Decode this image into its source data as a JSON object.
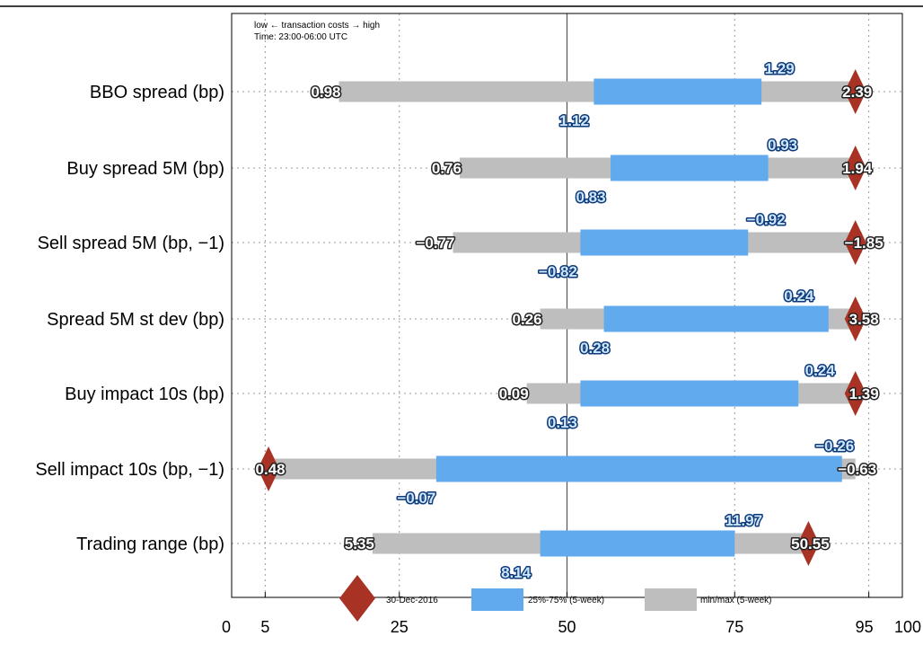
{
  "chart_data": {
    "type": "range",
    "annotation_line1": "low ← transaction costs → high",
    "annotation_line2": "Time: 23:00-06:00 UTC",
    "xlim": [
      0,
      100
    ],
    "xticks": [
      "0",
      "5",
      "25",
      "50",
      "75",
      "95",
      "100"
    ],
    "xtick_values": [
      0,
      5,
      25,
      50,
      75,
      95,
      100
    ],
    "reference_line_x": 50,
    "legend": {
      "marker_label": "30-Dec-2016",
      "iqr_label": "25%-75%  (5-week)",
      "minmax_label": "min/max  (5-week)"
    },
    "colors": {
      "minmax": "#bebebe",
      "iqr": "#62aaee",
      "marker": "#a83224",
      "value_outline_gray": "#222222",
      "value_outline_blue": "#0d3a78"
    },
    "rows": [
      {
        "label": "BBO spread (bp)",
        "min_pct": 16,
        "max_pct": 93,
        "q25_pct": 54,
        "q75_pct": 79,
        "marker_pct": 93,
        "min_label": "0.98",
        "max_label": "2.39",
        "q25_label": "1.12",
        "q75_label": "1.29"
      },
      {
        "label": "Buy spread 5M (bp)",
        "min_pct": 34,
        "max_pct": 93,
        "q25_pct": 56.5,
        "q75_pct": 80,
        "marker_pct": 93,
        "min_label": "0.76",
        "max_label": "1.94",
        "q25_label": "0.83",
        "q75_label": "0.93"
      },
      {
        "label": "Sell spread 5M (bp, −1)",
        "min_pct": 33,
        "max_pct": 94,
        "q25_pct": 52,
        "q75_pct": 77,
        "marker_pct": 93,
        "min_label": "−0.77",
        "max_label": "−1.85",
        "q25_label": "−0.82",
        "q75_label": "−0.92"
      },
      {
        "label": "Spread 5M st dev (bp)",
        "min_pct": 46,
        "max_pct": 94,
        "q25_pct": 55.5,
        "q75_pct": 89,
        "marker_pct": 93,
        "min_label": "0.26",
        "max_label": "3.58",
        "q25_label": "0.28",
        "q75_label": "0.24"
      },
      {
        "label": "Buy impact 10s (bp)",
        "min_pct": 44,
        "max_pct": 94,
        "q25_pct": 52,
        "q75_pct": 84.5,
        "marker_pct": 93,
        "min_label": "0.09",
        "max_label": "1.39",
        "q25_label": "0.13",
        "q75_label": "0.24"
      },
      {
        "label": "Sell impact 10s (bp, −1)",
        "min_pct": 5.5,
        "max_pct": 93,
        "q25_pct": 30.5,
        "q75_pct": 91,
        "marker_pct": 5.5,
        "min_label": "0.48",
        "max_label": "−0.63",
        "q25_label": "−0.07",
        "q75_label": "−0.26"
      },
      {
        "label": "Trading range (bp)",
        "min_pct": 21,
        "max_pct": 86,
        "q25_pct": 46,
        "q75_pct": 75,
        "marker_pct": 86,
        "min_label": "5.35",
        "max_label": "50.55",
        "q25_label": "8.14",
        "q75_label": "11.97"
      }
    ]
  }
}
